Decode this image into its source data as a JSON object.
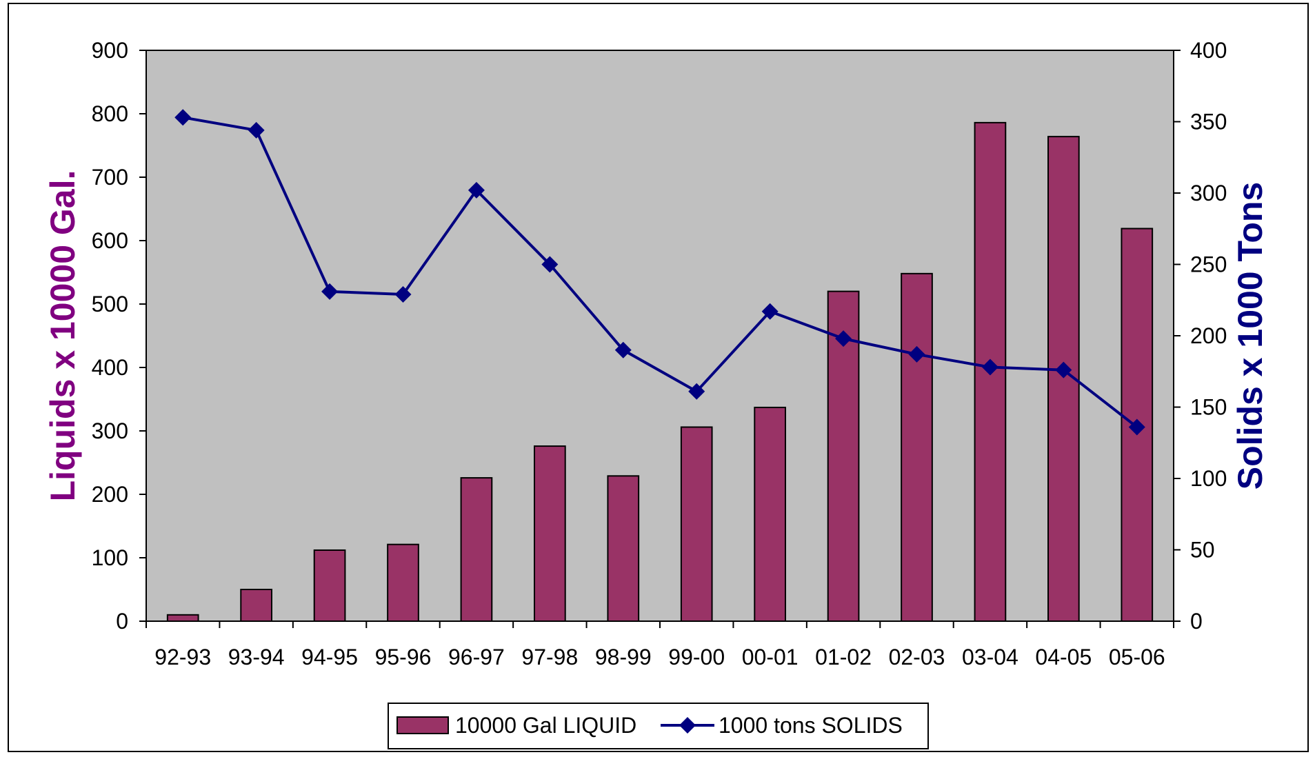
{
  "colors": {
    "plot_background": "#c0c0c0",
    "bar_fill": "#993366",
    "line_color": "#000080",
    "left_axis_title_color": "#800080",
    "right_axis_title_color": "#000080",
    "frame": "#000000",
    "page_background": "#ffffff"
  },
  "chart_data": {
    "type": "bar",
    "categories": [
      "92-93",
      "93-94",
      "94-95",
      "95-96",
      "96-97",
      "97-98",
      "98-99",
      "99-00",
      "00-01",
      "01-02",
      "02-03",
      "03-04",
      "04-05",
      "05-06"
    ],
    "series": [
      {
        "name": "10000 Gal LIQUID",
        "type": "bar",
        "axis": "left",
        "values": [
          10,
          50,
          112,
          121,
          226,
          276,
          229,
          306,
          337,
          520,
          548,
          786,
          764,
          619
        ]
      },
      {
        "name": "1000 tons SOLIDS",
        "type": "line",
        "axis": "right",
        "marker": "diamond",
        "values": [
          353,
          344,
          231,
          229,
          302,
          250,
          190,
          161,
          217,
          198,
          187,
          178,
          176,
          136
        ]
      }
    ],
    "y_left": {
      "label": "Liquids x 10000 Gal.",
      "range": [
        0,
        900
      ],
      "ticks": [
        "0",
        "100",
        "200",
        "300",
        "400",
        "500",
        "600",
        "700",
        "800",
        "900"
      ]
    },
    "y_right": {
      "label": "Solids x 1000 Tons",
      "range": [
        0,
        400
      ],
      "ticks": [
        "0",
        "50",
        "100",
        "150",
        "200",
        "250",
        "300",
        "350",
        "400"
      ]
    },
    "grid": false,
    "legend_position": "bottom-center"
  }
}
